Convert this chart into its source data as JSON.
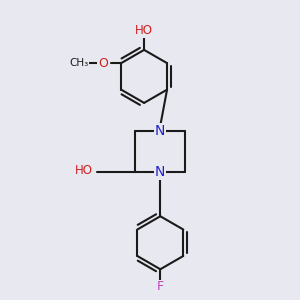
{
  "bg_color": "#e8e8f0",
  "bond_color": "#1a1a1a",
  "bond_width": 1.5,
  "N_color": "#2020cc",
  "O_color": "#cc2020",
  "F_color": "#bb44bb",
  "font_size": 9,
  "fig_size": [
    3.0,
    3.0
  ],
  "dpi": 100,
  "xlim": [
    0,
    10
  ],
  "ylim": [
    0,
    10
  ]
}
